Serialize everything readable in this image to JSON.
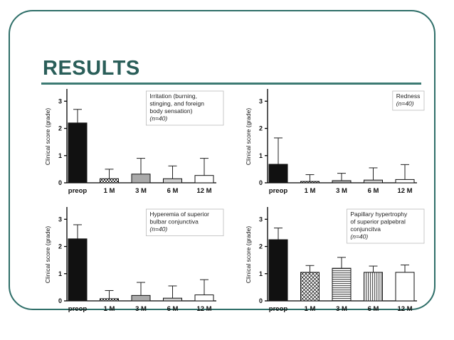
{
  "slide": {
    "title": "RESULTS"
  },
  "chart_data": [
    {
      "type": "bar",
      "legend_lines": [
        "Irritation (burning,",
        "stinging, and foreign",
        "body sensation)"
      ],
      "n_label": "(n=40)",
      "ylabel": "Clinical score (grade)",
      "yticks": [
        "0",
        "1",
        "2",
        "3"
      ],
      "ylim": [
        0,
        3.4
      ],
      "categories": [
        "preop",
        "1 M",
        "3 M",
        "6 M",
        "12 M"
      ],
      "values": [
        2.2,
        0.15,
        0.32,
        0.15,
        0.27
      ],
      "error_upper": [
        2.7,
        0.5,
        0.9,
        0.62,
        0.9
      ],
      "fills": [
        "solid",
        "check",
        "gray",
        "lightgray",
        "white"
      ]
    },
    {
      "type": "bar",
      "legend_lines": [
        "Redness"
      ],
      "n_label": "(n=40)",
      "ylabel": "Clinical score (grade)",
      "yticks": [
        "0",
        "1",
        "2",
        "3"
      ],
      "ylim": [
        0,
        3.4
      ],
      "categories": [
        "preop",
        "1 M",
        "3 M",
        "6 M",
        "12 M"
      ],
      "values": [
        0.68,
        0.05,
        0.08,
        0.1,
        0.12
      ],
      "error_upper": [
        1.65,
        0.3,
        0.35,
        0.55,
        0.67
      ],
      "fills": [
        "solid",
        "check",
        "gray",
        "lightgray",
        "white"
      ]
    },
    {
      "type": "bar",
      "legend_lines": [
        "Hyperemia of superior",
        "bulbar conjunctiva"
      ],
      "n_label": "(n=40)",
      "ylabel": "Clinical score (grade)",
      "yticks": [
        "0",
        "1",
        "2",
        "3"
      ],
      "ylim": [
        0,
        3.4
      ],
      "categories": [
        "preop",
        "1 M",
        "3 M",
        "6 M",
        "12 M"
      ],
      "values": [
        2.28,
        0.08,
        0.2,
        0.1,
        0.22
      ],
      "error_upper": [
        2.8,
        0.38,
        0.68,
        0.55,
        0.78
      ],
      "fills": [
        "solid",
        "check",
        "gray",
        "lightgray",
        "white"
      ]
    },
    {
      "type": "bar",
      "legend_lines": [
        "Papillary hypertrophy",
        "of superior palpebral",
        "conjuncitva"
      ],
      "n_label": "(n=40)",
      "ylabel": "Clinical score (grade)",
      "yticks": [
        "0",
        "1",
        "2",
        "3"
      ],
      "ylim": [
        0,
        3.4
      ],
      "categories": [
        "preop",
        "1 M",
        "3 M",
        "6 M",
        "12 M"
      ],
      "values": [
        2.25,
        1.05,
        1.2,
        1.05,
        1.05
      ],
      "error_upper": [
        2.68,
        1.3,
        1.6,
        1.28,
        1.32
      ],
      "fills": [
        "solid",
        "xhatch",
        "hlines",
        "vlines",
        "white"
      ]
    }
  ]
}
